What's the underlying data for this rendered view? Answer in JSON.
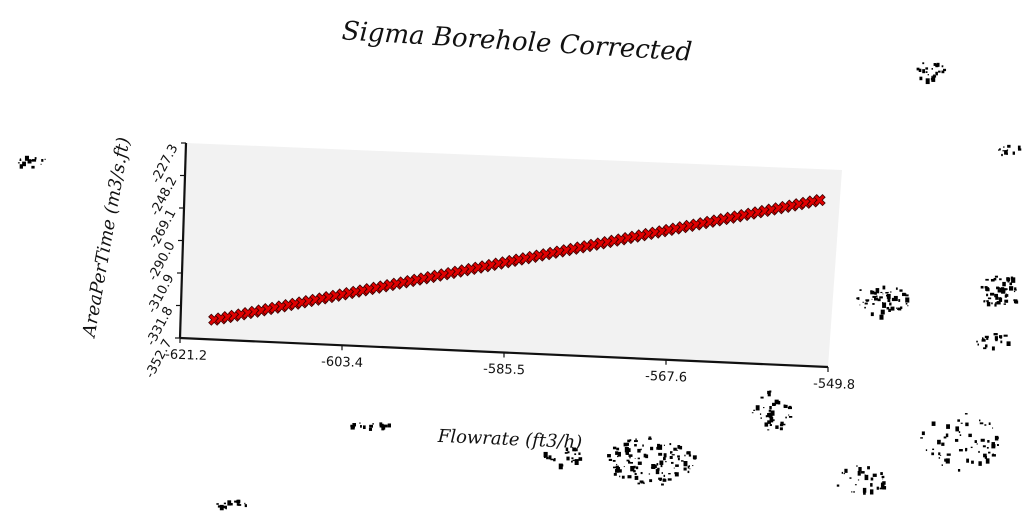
{
  "chart_data": {
    "type": "scatter",
    "title": "Sigma Borehole Corrected",
    "xlabel": "Flowrate (ft3/h)",
    "ylabel": "AreaPerTime (m3/s.ft)",
    "xlim": [
      -621.2,
      -549.8
    ],
    "ylim": [
      -352.7,
      -227.3
    ],
    "x_ticks": [
      "-621.2",
      "-603.4",
      "-585.5",
      "-567.6",
      "-549.8"
    ],
    "y_ticks": [
      "-352.7",
      "-331.8",
      "-310.9",
      "-290.0",
      "-269.1",
      "-248.2",
      "-227.3"
    ],
    "grid": false,
    "legend": "none",
    "marker": "X",
    "marker_color": "#e00000",
    "marker_edge": "#3a0000",
    "background": "#f2f2f2",
    "series": [
      {
        "x_start": -617.5,
        "x_end": -552.0,
        "y_start": -340.0,
        "y_end": -247.0,
        "count": 90
      }
    ]
  }
}
